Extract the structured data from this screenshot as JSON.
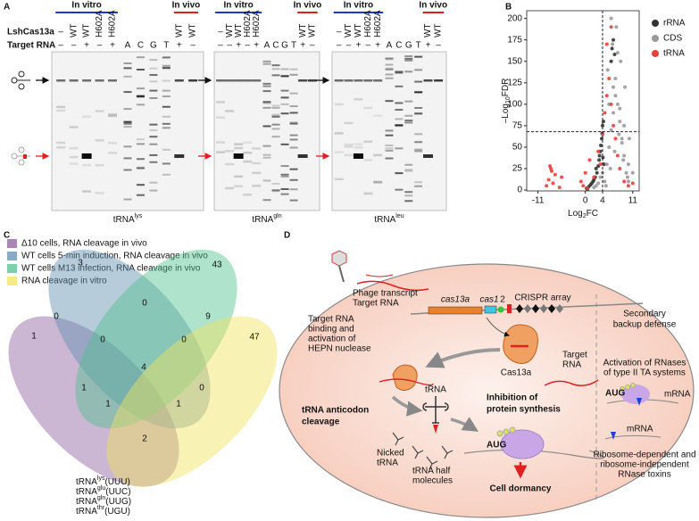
{
  "panel_labels": [
    "A",
    "B",
    "C",
    "D"
  ],
  "gels": {
    "row_labels": [
      "LshCas13a",
      "Target RNA"
    ],
    "panels": [
      {
        "in_vitro": "In vitro",
        "in_vivo": "In vivo",
        "cas": [
          "–",
          "WT",
          "WT",
          "H602A",
          "H602A"
        ],
        "target": [
          "–",
          "–",
          "+",
          "–",
          "+"
        ],
        "ladder": [
          "A",
          "C",
          "G",
          "T"
        ],
        "vivo_cas": [
          "WT",
          "WT"
        ],
        "vivo_target": [
          "+",
          "–"
        ],
        "label": {
          "base": "tRNA",
          "sup": "lys"
        }
      },
      {
        "in_vitro": "In vitro",
        "in_vivo": "In vivo",
        "cas": [
          "–",
          "WT",
          "WT",
          "H602A",
          "H602A"
        ],
        "target": [
          "–",
          "–",
          "+",
          "–",
          "+"
        ],
        "ladder": [
          "A",
          "C",
          "G",
          "T"
        ],
        "vivo_cas": [
          "WT",
          "WT"
        ],
        "vivo_target": [
          "+",
          "–"
        ],
        "label": {
          "base": "tRNA",
          "sup": "gln"
        }
      },
      {
        "in_vitro": "In vitro",
        "in_vivo": "In vivo",
        "cas": [
          "–",
          "WT",
          "WT",
          "H602A",
          "H602A"
        ],
        "target": [
          "–",
          "–",
          "+",
          "–",
          "+"
        ],
        "ladder": [
          "A",
          "C",
          "G",
          "T"
        ],
        "vivo_cas": [
          "WT",
          "WT"
        ],
        "vivo_target": [
          "+",
          "–"
        ],
        "label": {
          "base": "tRNA",
          "sup": "leu"
        }
      }
    ]
  },
  "chart_data": {
    "type": "scatter",
    "x_label": {
      "pre": "Log",
      "sub": "2",
      "post": "FC"
    },
    "y_label": {
      "pre": "–Log",
      "sub": "10",
      "post": "FDR"
    },
    "xlim": [
      -13.6,
      12.5
    ],
    "ylim": [
      -1,
      209
    ],
    "xticks": [
      -11,
      0,
      4,
      11
    ],
    "yticks": [
      0,
      25,
      50,
      75,
      100,
      125,
      150,
      175,
      200
    ],
    "thresholds": {
      "x": 4,
      "y": 68
    },
    "legend": "right",
    "series": [
      {
        "name": "rRNA",
        "color": "#333333",
        "x": [
          0.3,
          0.8,
          1.2,
          1.5,
          2,
          2.3,
          2.7,
          3,
          3.2,
          3.5,
          3.8,
          4,
          4.2,
          3.6,
          3.9,
          4.1,
          6,
          6.2,
          6.5,
          6.8,
          2.5,
          1.8,
          3.3,
          4.3,
          0.5
        ],
        "values": [
          2,
          4,
          6,
          8,
          12,
          15,
          20,
          28,
          35,
          45,
          60,
          75,
          80,
          52,
          66,
          38,
          150,
          165,
          175,
          158,
          25,
          10,
          40,
          30,
          1
        ]
      },
      {
        "name": "CDS",
        "color": "#9a9a9a",
        "x": [
          4.5,
          5,
          5.5,
          6,
          6.5,
          7,
          7.5,
          8,
          8.5,
          9,
          9.5,
          10,
          5.2,
          6.3,
          7.2,
          8.2,
          9.2,
          10.2,
          5.8,
          6.8,
          7.8,
          8.8,
          9.8,
          4.8,
          6,
          7,
          8,
          9,
          10,
          11,
          5.5,
          6.5,
          7.5,
          8.5,
          3,
          3.5,
          2,
          2.5,
          4
        ],
        "values": [
          10,
          30,
          50,
          70,
          90,
          110,
          100,
          80,
          60,
          40,
          20,
          10,
          140,
          170,
          190,
          150,
          120,
          60,
          25,
          45,
          65,
          35,
          15,
          5,
          200,
          130,
          95,
          75,
          30,
          20,
          100,
          120,
          160,
          55,
          8,
          15,
          3,
          5,
          20
        ]
      },
      {
        "name": "tRNA",
        "color": "#e8413c",
        "x": [
          -9,
          -8.5,
          -8,
          -7.5,
          -7,
          -6,
          -5.5,
          -1,
          -0.5,
          0,
          0.5,
          1,
          2,
          3,
          4,
          4.5,
          5,
          5.5,
          6,
          6.5,
          7,
          7.5,
          8,
          9,
          10,
          11,
          5,
          6,
          3.5,
          -8.2,
          -7.8
        ],
        "values": [
          5,
          12,
          25,
          8,
          18,
          3,
          15,
          10,
          5,
          20,
          2,
          35,
          15,
          45,
          65,
          90,
          110,
          130,
          100,
          75,
          60,
          40,
          25,
          10,
          5,
          8,
          170,
          190,
          30,
          28,
          22
        ]
      }
    ]
  },
  "venn": {
    "legend": [
      {
        "label": "Δ10 cells, RNA cleavage in vivo",
        "color": "#8b5fa0"
      },
      {
        "label": "WT cells 5-min induction, RNA cleavage in vivo",
        "color": "#5f8fb0"
      },
      {
        "label": "WT cells M13 infection, RNA cleavage in vivo",
        "color": "#4fc08f"
      },
      {
        "label": "RNA cleavage in vitro",
        "color": "#f2e35c"
      }
    ],
    "counts": [
      3,
      43,
      0,
      0,
      9,
      1,
      0,
      0,
      47,
      4,
      1,
      0,
      1,
      1,
      2
    ],
    "trna_list": [
      {
        "base": "tRNA",
        "sup": "lys",
        "post": "(UUU)"
      },
      {
        "base": "tRNA",
        "sup": "glu",
        "post": "(UUC)"
      },
      {
        "base": "tRNA",
        "sup": "gln",
        "post": "(UUG)"
      },
      {
        "base": "tRNA",
        "sup": "thr",
        "post": "(UGU)"
      }
    ]
  },
  "diagram": {
    "phage": [
      "Phage transcript",
      "Target RNA"
    ],
    "cas13a_gene": "cas13a",
    "cas1_gene": "cas1",
    "cas2_gene": "2",
    "crispr": "CRISPR array",
    "binding": [
      "Target RNA",
      "binding and",
      "activation of",
      "HEPN nuclease"
    ],
    "cas13a_protein": "Cas13a",
    "target_rna": [
      "Target",
      "RNA"
    ],
    "cleavage": [
      "tRNA anticodon",
      "cleavage"
    ],
    "trna": "tRNA",
    "inhibition": [
      "Inhibition of",
      "protein synthesis"
    ],
    "aug": "AUG",
    "nicked": [
      "Nicked",
      "tRNA"
    ],
    "halves": [
      "tRNA half",
      "molecules"
    ],
    "dormancy": "Cell dormancy",
    "secondary": [
      "Secondary",
      "backup defense"
    ],
    "activation": [
      "Activation of RNases",
      "of type II TA systems"
    ],
    "aug2": "AUG",
    "mrna1": "mRNA",
    "mrna2": "mRNA",
    "toxins": [
      "Ribosome-dependent and",
      "ribosome-independent",
      "RNase toxins"
    ]
  }
}
